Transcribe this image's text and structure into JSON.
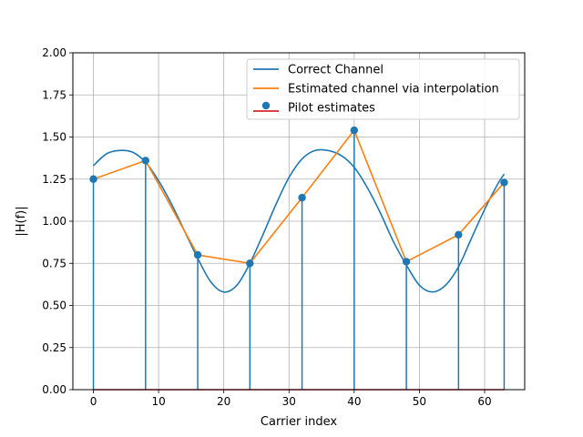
{
  "chart_data": {
    "type": "line",
    "title": "",
    "xlabel": "Carrier index",
    "ylabel": "|H(f)|",
    "xlim": [
      -3.15,
      66.15
    ],
    "ylim": [
      0,
      2.0
    ],
    "xticks": [
      0,
      10,
      20,
      30,
      40,
      50,
      60
    ],
    "xtick_labels": [
      "0",
      "10",
      "20",
      "30",
      "40",
      "50",
      "60"
    ],
    "yticks": [
      0,
      0.25,
      0.5,
      0.75,
      1.0,
      1.25,
      1.5,
      1.75,
      2.0
    ],
    "ytick_labels": [
      "0.00",
      "0.25",
      "0.50",
      "0.75",
      "1.00",
      "1.25",
      "1.50",
      "1.75",
      "2.00"
    ],
    "grid": true,
    "legend_position": "top-right",
    "series": [
      {
        "name": "Correct Channel",
        "type": "line",
        "color": "#1f77b4",
        "x": [
          0,
          2,
          4,
          6,
          8,
          10,
          12,
          14,
          16,
          18,
          20,
          22,
          24,
          26,
          28,
          30,
          32,
          34,
          36,
          38,
          40,
          42,
          44,
          46,
          48,
          50,
          52,
          54,
          56,
          58,
          60,
          62,
          63
        ],
        "y": [
          1.33,
          1.4,
          1.42,
          1.41,
          1.35,
          1.24,
          1.1,
          0.94,
          0.78,
          0.64,
          0.58,
          0.62,
          0.75,
          0.92,
          1.1,
          1.26,
          1.37,
          1.42,
          1.42,
          1.39,
          1.32,
          1.2,
          1.05,
          0.88,
          0.74,
          0.62,
          0.58,
          0.62,
          0.73,
          0.9,
          1.07,
          1.22,
          1.28
        ]
      },
      {
        "name": "Estimated channel via interpolation",
        "type": "line",
        "color": "#ff7f0e",
        "x": [
          0,
          8,
          16,
          24,
          32,
          40,
          48,
          56,
          63
        ],
        "y": [
          1.25,
          1.36,
          0.8,
          0.75,
          1.14,
          1.54,
          0.76,
          0.92,
          1.23
        ]
      },
      {
        "name": "Pilot estimates",
        "type": "stem",
        "color": "#1f77b4",
        "baseline_color": "#d62728",
        "x": [
          0,
          8,
          16,
          24,
          32,
          40,
          48,
          56,
          63
        ],
        "y": [
          1.25,
          1.36,
          0.8,
          0.75,
          1.14,
          1.54,
          0.76,
          0.92,
          1.23
        ]
      }
    ]
  }
}
